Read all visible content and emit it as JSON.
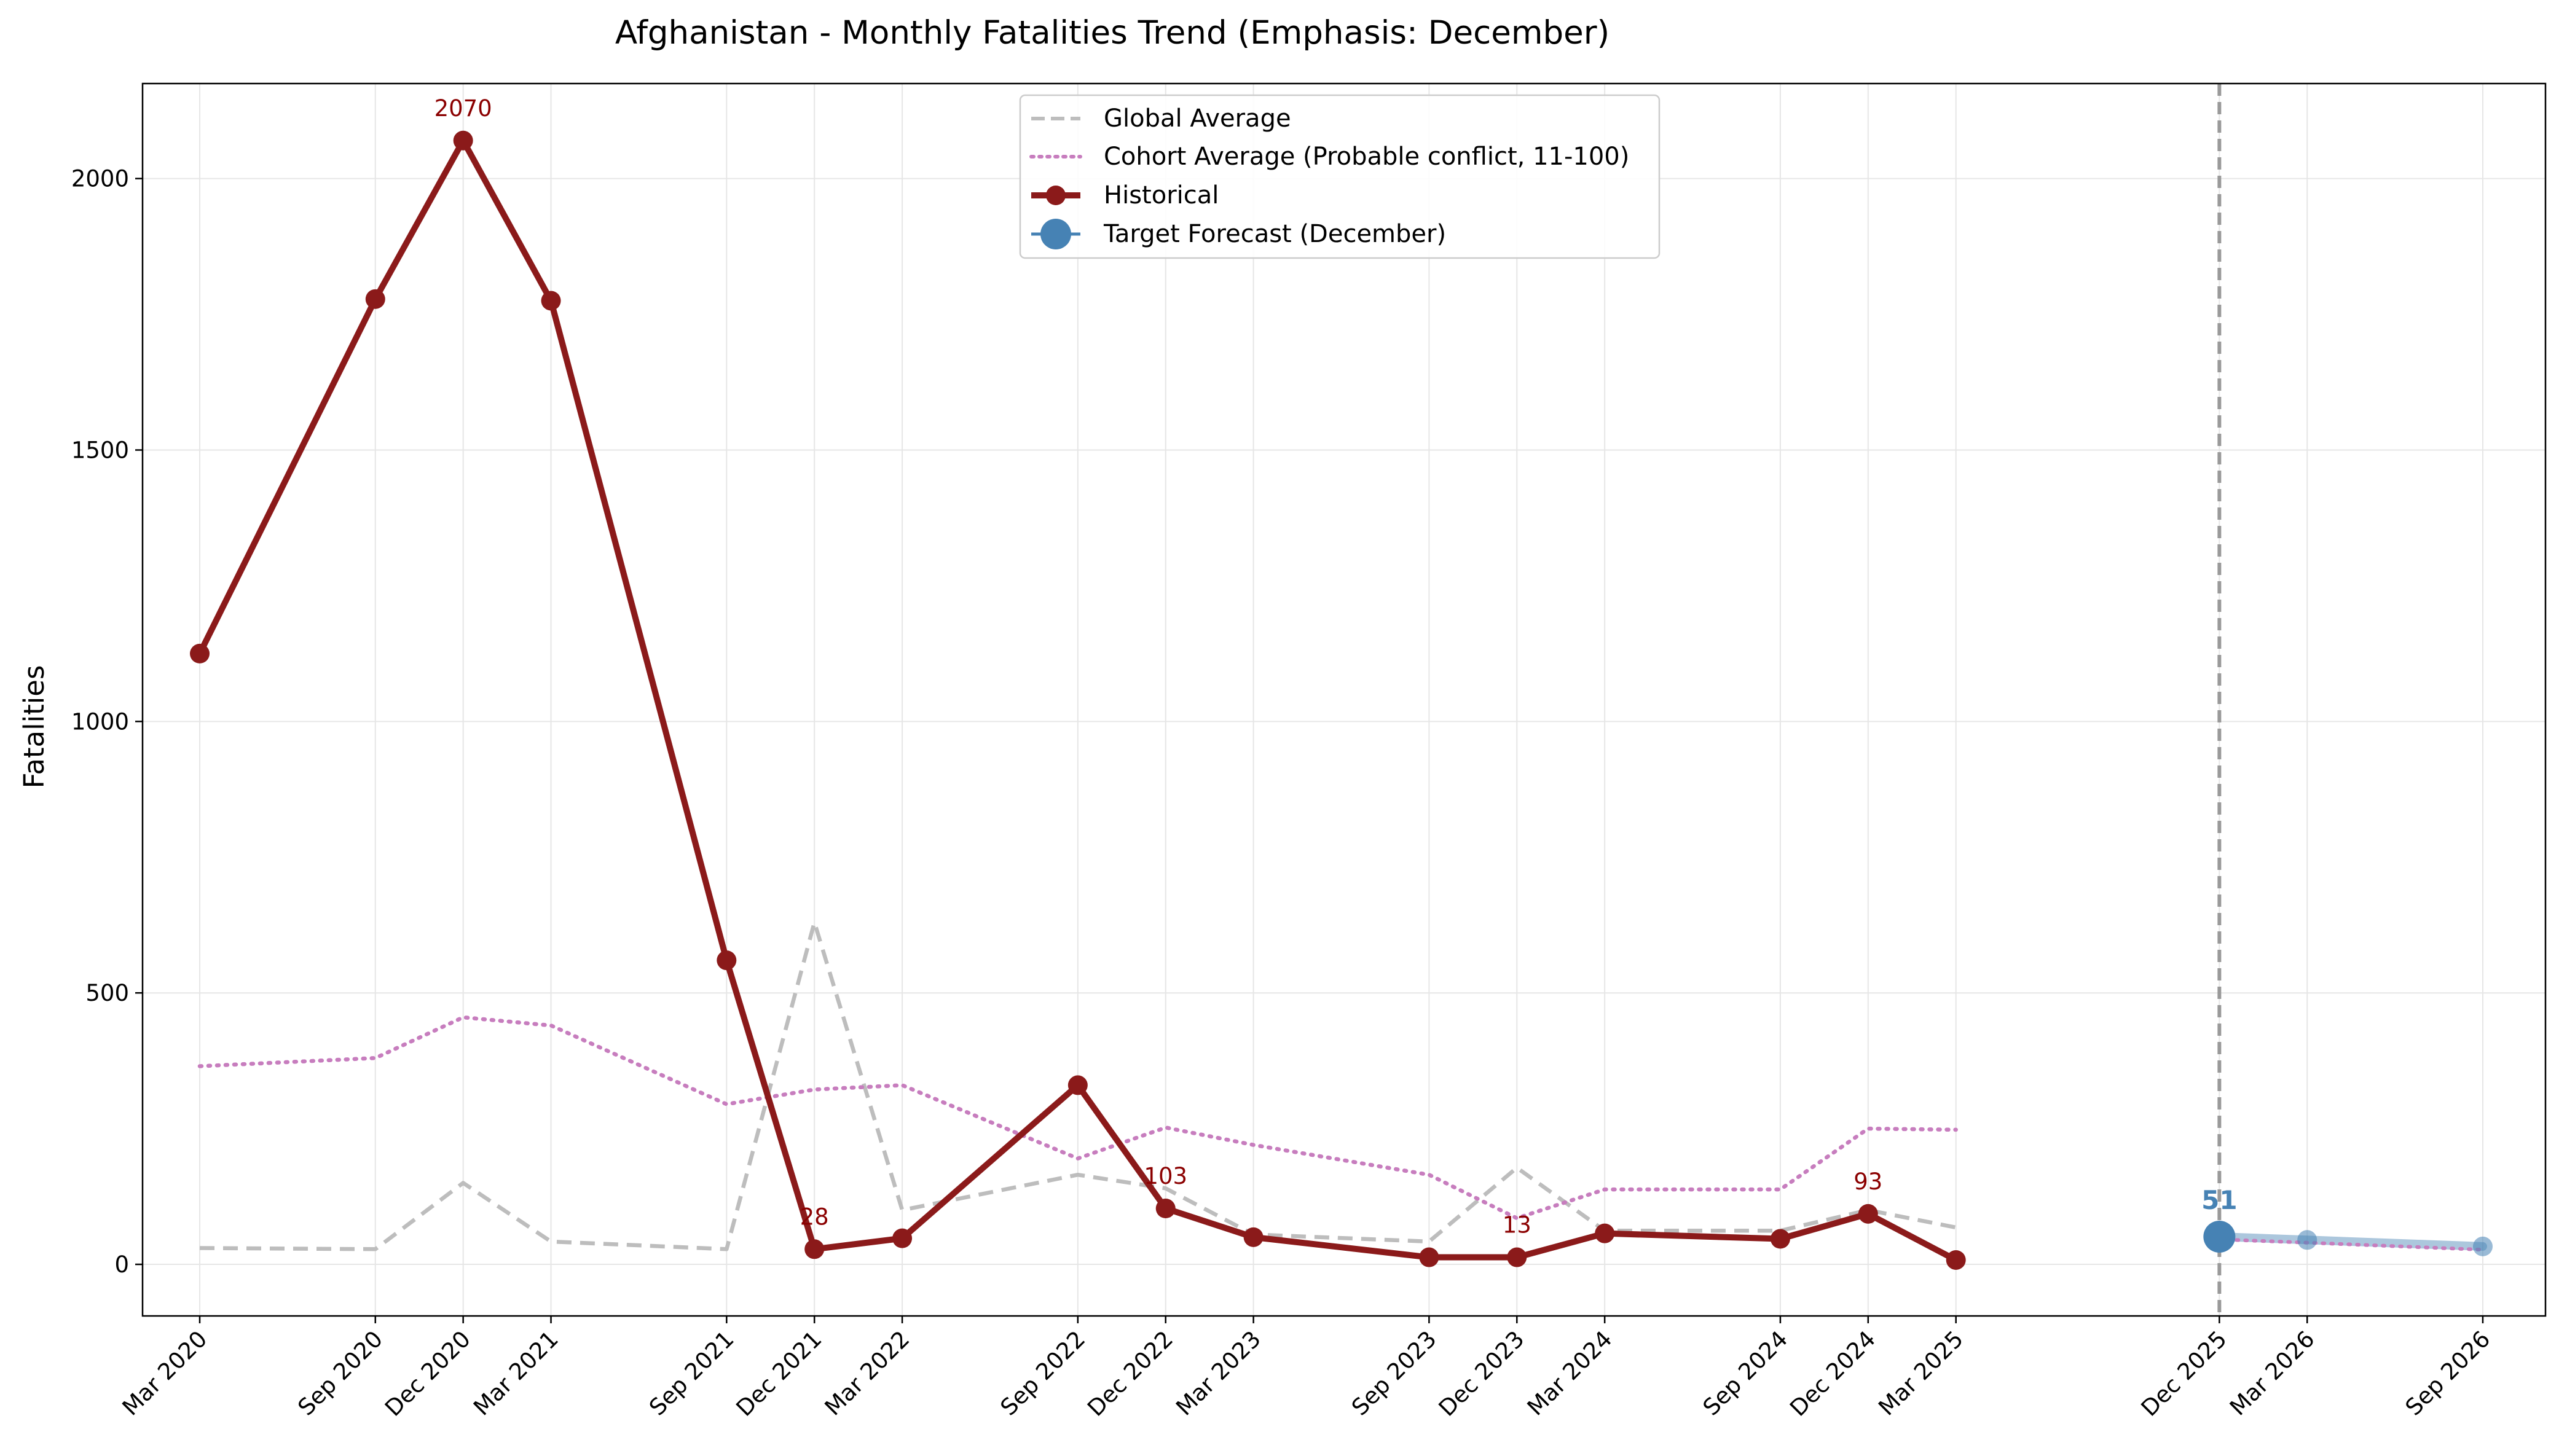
{
  "chart_data": {
    "type": "line",
    "title": "Afghanistan - Monthly Fatalities Trend (Emphasis: December)",
    "xlabel": "",
    "ylabel": "Fatalities",
    "ylim": [
      -95,
      2175
    ],
    "yticks": [
      0,
      500,
      1000,
      1500,
      2000
    ],
    "grid": true,
    "legend_position": "top-center",
    "xtick_labels": [
      "Mar 2020",
      "Sep 2020",
      "Dec 2020",
      "Mar 2021",
      "Sep 2021",
      "Dec 2021",
      "Mar 2022",
      "Sep 2022",
      "Dec 2022",
      "Mar 2023",
      "Sep 2023",
      "Dec 2023",
      "Mar 2024",
      "Sep 2024",
      "Dec 2024",
      "Mar 2025",
      "Dec 2025",
      "Mar 2026",
      "Sep 2026"
    ],
    "forecast_start": "Dec 2025",
    "series": [
      {
        "name": "Global Average",
        "style": "dashed",
        "color": "#bdbdbd",
        "x": [
          "Mar 2020",
          "Sep 2020",
          "Dec 2020",
          "Mar 2021",
          "Sep 2021",
          "Dec 2021",
          "Mar 2022",
          "Sep 2022",
          "Dec 2022",
          "Mar 2023",
          "Sep 2023",
          "Dec 2023",
          "Mar 2024",
          "Sep 2024",
          "Dec 2024",
          "Mar 2025"
        ],
        "values": [
          30,
          28,
          150,
          42,
          28,
          630,
          100,
          165,
          140,
          55,
          42,
          178,
          62,
          62,
          100,
          68
        ]
      },
      {
        "name": "Cohort Average (Probable conflict, 11-100)",
        "style": "dotted",
        "color": "#c77dbe",
        "x": [
          "Mar 2020",
          "Sep 2020",
          "Dec 2020",
          "Mar 2021",
          "Sep 2021",
          "Dec 2021",
          "Mar 2022",
          "Sep 2022",
          "Dec 2022",
          "Mar 2023",
          "Sep 2023",
          "Dec 2023",
          "Mar 2024",
          "Sep 2024",
          "Dec 2024",
          "Mar 2025"
        ],
        "values": [
          365,
          380,
          455,
          440,
          295,
          322,
          330,
          195,
          252,
          220,
          165,
          85,
          138,
          138,
          250,
          248
        ]
      },
      {
        "name": "Historical",
        "style": "solid-markers",
        "color": "#8b1a1a",
        "x": [
          "Mar 2020",
          "Sep 2020",
          "Dec 2020",
          "Mar 2021",
          "Sep 2021",
          "Dec 2021",
          "Mar 2022",
          "Sep 2022",
          "Dec 2022",
          "Mar 2023",
          "Sep 2023",
          "Dec 2023",
          "Mar 2024",
          "Sep 2024",
          "Dec 2024",
          "Mar 2025"
        ],
        "values": [
          1125,
          1778,
          2070,
          1775,
          560,
          28,
          48,
          330,
          103,
          50,
          13,
          13,
          57,
          47,
          93,
          8
        ]
      },
      {
        "name": "Target Forecast (December)",
        "style": "highlight",
        "color": "#4682b4",
        "x": [
          "Dec 2025"
        ],
        "values": [
          51
        ]
      }
    ],
    "forecast_extension": {
      "x": [
        "Dec 2025",
        "Mar 2026",
        "Sep 2026"
      ],
      "values": [
        51,
        45,
        33
      ],
      "cohort_values": [
        46,
        40,
        27
      ]
    },
    "annotations": [
      {
        "x": "Dec 2020",
        "text": "2070",
        "series": "Historical"
      },
      {
        "x": "Dec 2021",
        "text": "28",
        "series": "Historical"
      },
      {
        "x": "Dec 2022",
        "text": "103",
        "series": "Historical"
      },
      {
        "x": "Dec 2023",
        "text": "13",
        "series": "Historical"
      },
      {
        "x": "Dec 2024",
        "text": "93",
        "series": "Historical"
      },
      {
        "x": "Dec 2025",
        "text": "51",
        "series": "Target Forecast (December)"
      }
    ]
  }
}
